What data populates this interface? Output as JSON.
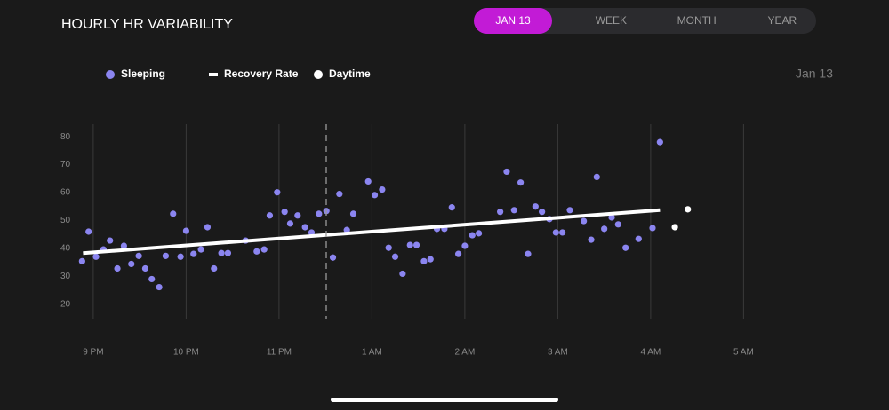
{
  "header": {
    "title": "HOURLY HR VARIABILITY",
    "tabs": [
      "JAN 13",
      "WEEK",
      "MONTH",
      "YEAR"
    ],
    "active_tab": 0
  },
  "date_label": "Jan 13",
  "chart_data": {
    "type": "scatter",
    "xlim": [
      -0.2,
      7.8
    ],
    "ylim": [
      14.5,
      84.5
    ],
    "xticks": [
      {
        "value": 0,
        "label": "9 PM"
      },
      {
        "value": 1,
        "label": "10 PM"
      },
      {
        "value": 2,
        "label": "11 PM"
      },
      {
        "value": 3,
        "label": "1 AM"
      },
      {
        "value": 4,
        "label": "2 AM"
      },
      {
        "value": 5,
        "label": "3 AM"
      },
      {
        "value": 6,
        "label": "4 AM"
      },
      {
        "value": 7,
        "label": "5 AM"
      }
    ],
    "yticks": [
      20,
      30,
      40,
      50,
      60,
      70,
      80
    ],
    "grid": true,
    "series": [
      {
        "name": "Sleeping",
        "color": "#8b85f0",
        "kind": "points",
        "x": [
          -0.12,
          -0.05,
          0.03,
          0.11,
          0.18,
          0.26,
          0.33,
          0.41,
          0.49,
          0.56,
          0.63,
          0.71,
          0.78,
          0.86,
          0.94,
          1.0,
          1.08,
          1.16,
          1.23,
          1.3,
          1.38,
          1.45,
          1.64,
          1.76,
          1.84,
          1.9,
          1.98,
          2.06,
          2.12,
          2.2,
          2.28,
          2.35,
          2.43,
          2.51,
          2.58,
          2.65,
          2.73,
          2.8,
          2.96,
          3.03,
          3.11,
          3.18,
          3.25,
          3.33,
          3.41,
          3.48,
          3.56,
          3.63,
          3.7,
          3.78,
          3.86,
          3.93,
          4.0,
          4.08,
          4.15,
          4.38,
          4.45,
          4.53,
          4.6,
          4.68,
          4.76,
          4.83,
          4.91,
          4.98,
          5.05,
          5.13,
          5.28,
          5.36,
          5.42,
          5.5,
          5.58,
          5.65,
          5.73,
          5.87,
          6.02,
          6.1
        ],
        "values": [
          35.4,
          46,
          37,
          39.6,
          42.8,
          32.8,
          40.9,
          34.4,
          37.3,
          32.8,
          29,
          26.1,
          37.3,
          52.4,
          37,
          46.3,
          38,
          39.6,
          47.6,
          32.8,
          38.3,
          38.3,
          42.8,
          38.9,
          39.6,
          51.8,
          60.1,
          53.1,
          48.9,
          51.8,
          47.6,
          45.7,
          52.4,
          53.4,
          36.7,
          59.5,
          46.6,
          52.4,
          64,
          59.1,
          61.1,
          40.2,
          37,
          30.9,
          41.2,
          41.2,
          35.4,
          36.1,
          47,
          47,
          54.7,
          38,
          40.9,
          44.7,
          45.4,
          53.1,
          67.5,
          53.7,
          63.6,
          38,
          55,
          53.1,
          50.5,
          45.7,
          45.7,
          53.7,
          49.8,
          43.1,
          65.6,
          47,
          51.1,
          48.6,
          40.2,
          43.4,
          47.3,
          78.1
        ]
      },
      {
        "name": "Recovery Rate",
        "color": "#ffffff",
        "kind": "line",
        "x": [
          -0.11,
          6.1
        ],
        "values": [
          38.3,
          53.7
        ]
      },
      {
        "name": "Daytime",
        "color": "#ffffff",
        "kind": "points",
        "x": [
          6.26,
          6.4
        ],
        "values": [
          47.6,
          54
        ]
      }
    ]
  }
}
